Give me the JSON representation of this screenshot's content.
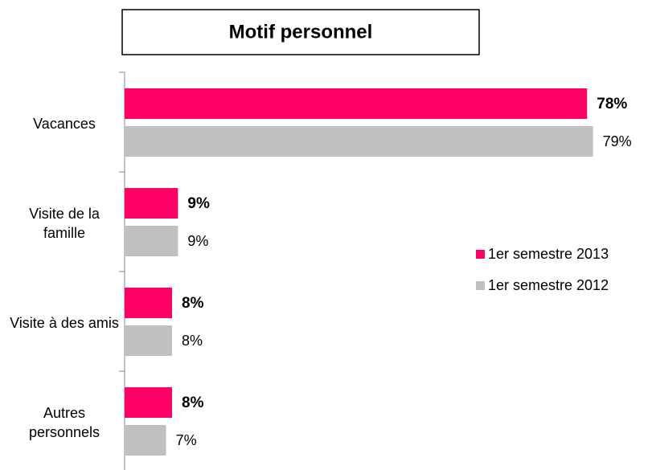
{
  "chart_data": {
    "type": "hbar",
    "title": "Motif personnel",
    "categories": [
      "Vacances",
      "Visite de la famille",
      "Visite à des amis",
      "Autres personnels"
    ],
    "series": [
      {
        "name": "1er semestre 2013",
        "color": "#ff0066",
        "values": [
          78,
          9,
          8,
          8
        ],
        "value_labels": [
          "78%",
          "9%",
          "8%",
          "8%"
        ]
      },
      {
        "name": "1er semestre 2012",
        "color": "#c0c0c0",
        "values": [
          79,
          9,
          8,
          7
        ],
        "value_labels": [
          "79%",
          "9%",
          "8%",
          "7%"
        ]
      }
    ],
    "xlim": [
      0,
      80
    ],
    "legend": "right"
  }
}
